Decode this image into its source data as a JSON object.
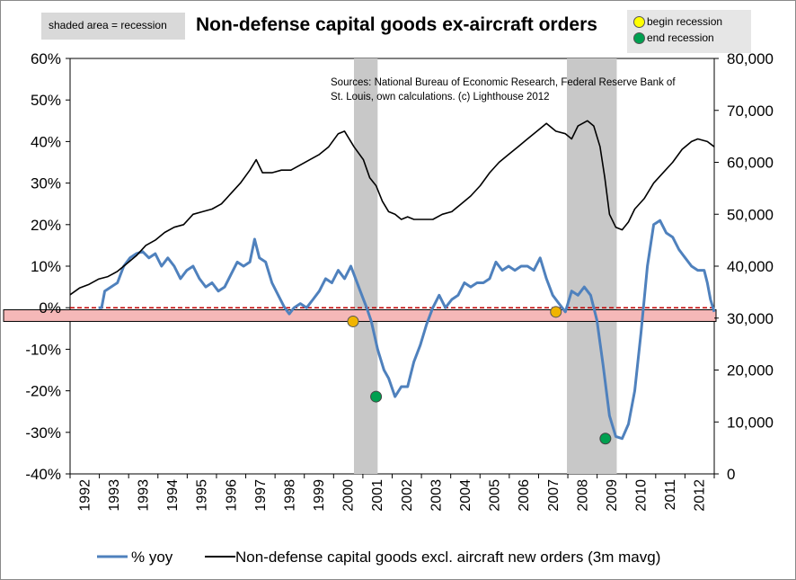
{
  "header": {
    "title": "Non-defense capital goods ex-aircraft orders",
    "shade_note": "shaded area = recession",
    "begin_label": "begin recession",
    "end_label": "end recession",
    "sources": "Sources: National Bureau of Economic Research, Federal Reserve Bank of St. Louis, own calculations. (c) Lighthouse 2012"
  },
  "colors": {
    "yoy": "#4f81bd",
    "level": "#000000",
    "recession_shade": "#c8c8c8",
    "zero_line": "#c00000",
    "band_fill": "#f5b8b8",
    "begin_marker": "#ffff00",
    "end_marker": "#00a050"
  },
  "chart_data": {
    "type": "line",
    "x_range": [
      1992,
      2012.42
    ],
    "left_axis": {
      "min": -0.4,
      "max": 0.6,
      "ticks": [
        "-40%",
        "-30%",
        "-20%",
        "-10%",
        "0%",
        "10%",
        "20%",
        "30%",
        "40%",
        "50%",
        "60%"
      ]
    },
    "right_axis": {
      "min": 0,
      "max": 80000,
      "ticks": [
        "0",
        "10,000",
        "20,000",
        "30,000",
        "40,000",
        "50,000",
        "60,000",
        "70,000",
        "80,000"
      ]
    },
    "x_ticks": [
      "1992",
      "1993",
      "1993",
      "1994",
      "1995",
      "1996",
      "1997",
      "1998",
      "1999",
      "2000",
      "2001",
      "2002",
      "2003",
      "2004",
      "2005",
      "2006",
      "2007",
      "2008",
      "2009",
      "2010",
      "2011",
      "2012"
    ],
    "recessions": [
      [
        2001.0,
        2001.75
      ],
      [
        2007.75,
        2009.33
      ]
    ],
    "zero_band": [
      -0.033,
      -0.005
    ],
    "begin_points": [
      [
        2000.97,
        -0.033
      ],
      [
        2007.4,
        -0.01
      ]
    ],
    "end_points": [
      [
        2001.7,
        -0.214
      ],
      [
        2008.97,
        -0.315
      ]
    ],
    "series": [
      {
        "name": "% yoy",
        "axis": "left",
        "points": [
          [
            1992.9,
            0.0
          ],
          [
            1993.0,
            0.0
          ],
          [
            1993.1,
            0.04
          ],
          [
            1993.3,
            0.05
          ],
          [
            1993.5,
            0.06
          ],
          [
            1993.7,
            0.1
          ],
          [
            1993.9,
            0.12
          ],
          [
            1994.1,
            0.13
          ],
          [
            1994.3,
            0.135
          ],
          [
            1994.5,
            0.12
          ],
          [
            1994.7,
            0.13
          ],
          [
            1994.9,
            0.1
          ],
          [
            1995.1,
            0.12
          ],
          [
            1995.3,
            0.1
          ],
          [
            1995.5,
            0.07
          ],
          [
            1995.7,
            0.09
          ],
          [
            1995.9,
            0.1
          ],
          [
            1996.1,
            0.07
          ],
          [
            1996.3,
            0.05
          ],
          [
            1996.5,
            0.06
          ],
          [
            1996.7,
            0.04
          ],
          [
            1996.9,
            0.05
          ],
          [
            1997.1,
            0.08
          ],
          [
            1997.3,
            0.11
          ],
          [
            1997.5,
            0.1
          ],
          [
            1997.7,
            0.11
          ],
          [
            1997.85,
            0.165
          ],
          [
            1998.0,
            0.12
          ],
          [
            1998.2,
            0.11
          ],
          [
            1998.4,
            0.06
          ],
          [
            1998.6,
            0.03
          ],
          [
            1998.8,
            0.0
          ],
          [
            1998.95,
            -0.015
          ],
          [
            1999.1,
            0.0
          ],
          [
            1999.3,
            0.01
          ],
          [
            1999.5,
            0.0
          ],
          [
            1999.7,
            0.02
          ],
          [
            1999.9,
            0.04
          ],
          [
            2000.1,
            0.07
          ],
          [
            2000.3,
            0.06
          ],
          [
            2000.5,
            0.09
          ],
          [
            2000.7,
            0.07
          ],
          [
            2000.9,
            0.1
          ],
          [
            2001.0,
            0.08
          ],
          [
            2001.2,
            0.04
          ],
          [
            2001.4,
            0.0
          ],
          [
            2001.55,
            -0.033
          ],
          [
            2001.75,
            -0.1
          ],
          [
            2001.95,
            -0.15
          ],
          [
            2002.1,
            -0.17
          ],
          [
            2002.3,
            -0.214
          ],
          [
            2002.5,
            -0.19
          ],
          [
            2002.7,
            -0.19
          ],
          [
            2002.9,
            -0.13
          ],
          [
            2003.1,
            -0.09
          ],
          [
            2003.3,
            -0.04
          ],
          [
            2003.5,
            0.0
          ],
          [
            2003.7,
            0.03
          ],
          [
            2003.9,
            0.0
          ],
          [
            2004.1,
            0.02
          ],
          [
            2004.3,
            0.03
          ],
          [
            2004.5,
            0.06
          ],
          [
            2004.7,
            0.05
          ],
          [
            2004.9,
            0.06
          ],
          [
            2005.1,
            0.06
          ],
          [
            2005.3,
            0.07
          ],
          [
            2005.5,
            0.11
          ],
          [
            2005.7,
            0.09
          ],
          [
            2005.9,
            0.1
          ],
          [
            2006.1,
            0.09
          ],
          [
            2006.3,
            0.1
          ],
          [
            2006.5,
            0.1
          ],
          [
            2006.7,
            0.09
          ],
          [
            2006.9,
            0.12
          ],
          [
            2007.1,
            0.07
          ],
          [
            2007.3,
            0.03
          ],
          [
            2007.5,
            0.01
          ],
          [
            2007.7,
            -0.01
          ],
          [
            2007.9,
            0.04
          ],
          [
            2008.1,
            0.03
          ],
          [
            2008.3,
            0.05
          ],
          [
            2008.5,
            0.03
          ],
          [
            2008.7,
            -0.03
          ],
          [
            2008.9,
            -0.14
          ],
          [
            2009.1,
            -0.26
          ],
          [
            2009.3,
            -0.31
          ],
          [
            2009.5,
            -0.315
          ],
          [
            2009.7,
            -0.28
          ],
          [
            2009.9,
            -0.2
          ],
          [
            2010.1,
            -0.06
          ],
          [
            2010.3,
            0.1
          ],
          [
            2010.5,
            0.2
          ],
          [
            2010.7,
            0.21
          ],
          [
            2010.9,
            0.18
          ],
          [
            2011.1,
            0.17
          ],
          [
            2011.3,
            0.14
          ],
          [
            2011.5,
            0.12
          ],
          [
            2011.7,
            0.1
          ],
          [
            2011.9,
            0.09
          ],
          [
            2012.1,
            0.09
          ],
          [
            2012.2,
            0.06
          ],
          [
            2012.3,
            0.02
          ],
          [
            2012.42,
            -0.01
          ]
        ]
      },
      {
        "name": "Non-defense capital goods excl. aircraft new orders (3m mavg)",
        "axis": "right",
        "points": [
          [
            1992.0,
            34500
          ],
          [
            1992.3,
            35800
          ],
          [
            1992.6,
            36500
          ],
          [
            1992.9,
            37500
          ],
          [
            1993.2,
            38000
          ],
          [
            1993.5,
            39000
          ],
          [
            1993.8,
            40500
          ],
          [
            1994.1,
            42000
          ],
          [
            1994.4,
            44000
          ],
          [
            1994.7,
            45000
          ],
          [
            1995.0,
            46500
          ],
          [
            1995.3,
            47500
          ],
          [
            1995.6,
            48000
          ],
          [
            1995.9,
            50000
          ],
          [
            1996.2,
            50500
          ],
          [
            1996.5,
            51000
          ],
          [
            1996.8,
            52000
          ],
          [
            1997.1,
            54000
          ],
          [
            1997.4,
            56000
          ],
          [
            1997.7,
            58500
          ],
          [
            1997.9,
            60500
          ],
          [
            1998.1,
            58000
          ],
          [
            1998.4,
            58000
          ],
          [
            1998.7,
            58500
          ],
          [
            1999.0,
            58500
          ],
          [
            1999.3,
            59500
          ],
          [
            1999.6,
            60500
          ],
          [
            1999.9,
            61500
          ],
          [
            2000.2,
            63000
          ],
          [
            2000.5,
            65500
          ],
          [
            2000.7,
            66000
          ],
          [
            2001.0,
            63000
          ],
          [
            2001.3,
            60500
          ],
          [
            2001.5,
            57000
          ],
          [
            2001.7,
            55500
          ],
          [
            2001.9,
            52500
          ],
          [
            2002.1,
            50500
          ],
          [
            2002.3,
            50000
          ],
          [
            2002.5,
            49000
          ],
          [
            2002.7,
            49500
          ],
          [
            2002.9,
            49000
          ],
          [
            2003.2,
            49000
          ],
          [
            2003.5,
            49000
          ],
          [
            2003.8,
            50000
          ],
          [
            2004.1,
            50500
          ],
          [
            2004.4,
            52000
          ],
          [
            2004.7,
            53500
          ],
          [
            2005.0,
            55500
          ],
          [
            2005.3,
            58000
          ],
          [
            2005.6,
            60000
          ],
          [
            2005.9,
            61500
          ],
          [
            2006.2,
            63000
          ],
          [
            2006.5,
            64500
          ],
          [
            2006.8,
            66000
          ],
          [
            2007.1,
            67500
          ],
          [
            2007.4,
            66000
          ],
          [
            2007.7,
            65500
          ],
          [
            2007.9,
            64500
          ],
          [
            2008.1,
            67000
          ],
          [
            2008.4,
            68000
          ],
          [
            2008.6,
            67000
          ],
          [
            2008.8,
            63000
          ],
          [
            2008.95,
            57000
          ],
          [
            2009.1,
            50000
          ],
          [
            2009.3,
            47500
          ],
          [
            2009.5,
            47000
          ],
          [
            2009.7,
            48500
          ],
          [
            2009.9,
            51000
          ],
          [
            2010.2,
            53000
          ],
          [
            2010.5,
            56000
          ],
          [
            2010.8,
            58000
          ],
          [
            2011.1,
            60000
          ],
          [
            2011.4,
            62500
          ],
          [
            2011.7,
            64000
          ],
          [
            2011.9,
            64500
          ],
          [
            2012.2,
            64000
          ],
          [
            2012.42,
            63000
          ]
        ]
      }
    ]
  },
  "legend": {
    "yoy_label": "% yoy",
    "level_label": "Non-defense capital goods excl. aircraft new orders (3m mavg)"
  }
}
